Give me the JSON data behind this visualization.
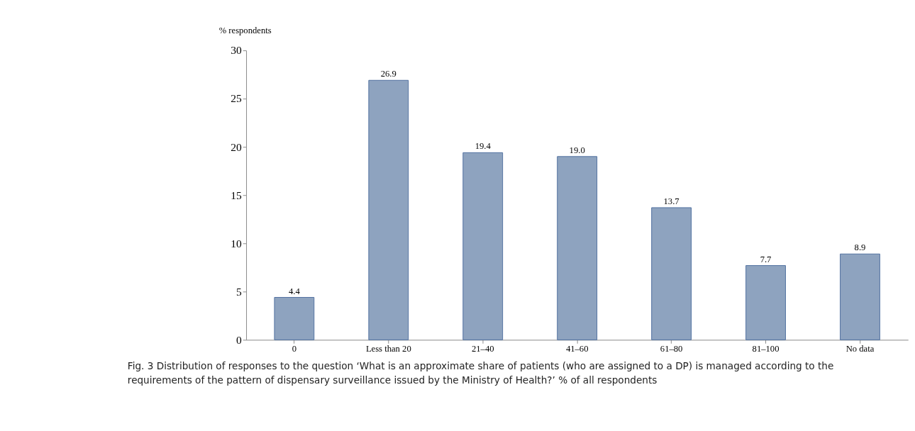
{
  "chart_data": {
    "type": "bar",
    "ylabel": "% respondents",
    "categories": [
      "0",
      "Less than 20",
      "21–40",
      "41–60",
      "61–80",
      "81–100",
      "No data"
    ],
    "values": [
      4.4,
      26.9,
      19.4,
      19.0,
      13.7,
      7.7,
      8.9
    ],
    "value_labels": [
      "4.4",
      "26.9",
      "19.4",
      "19.0",
      "13.7",
      "7.7",
      "8.9"
    ],
    "color": "#8ea3bf",
    "ylim": [
      0,
      30
    ],
    "yticks": [
      0,
      5,
      10,
      15,
      20,
      25,
      30
    ],
    "grid": false,
    "annotations": [
      "Fig. 3  Distribution of responses to the question ‘What is an approximate share of patients (who are assigned to a DP) is managed according to the requirements of the pattern of dispensary surveillance issued by the Ministry of Health?’ % of all respondents"
    ]
  }
}
